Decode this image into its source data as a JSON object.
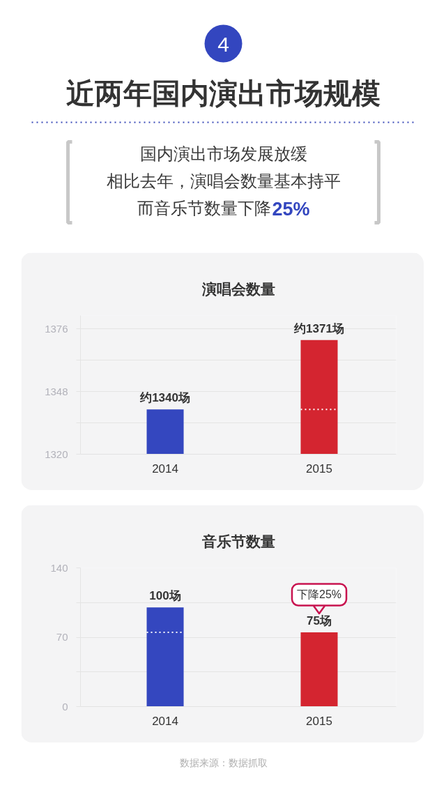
{
  "chart_data": [
    {
      "type": "other",
      "title": "近两年国内演出市场规模",
      "subtitle": "国内演出市场发展放缓相比去年，演唱会数量基本持平而音乐节数量下降25%",
      "annotations": [
        "4"
      ]
    },
    {
      "type": "bar",
      "title": "演唱会数量",
      "categories": [
        "2014",
        "2015"
      ],
      "values": [
        1340,
        1371
      ],
      "colors": [
        "#3447bf",
        "#d42530"
      ],
      "value_labels": [
        "约1340场",
        "约1371场"
      ],
      "ylim": [
        1320,
        1382
      ],
      "yticks": [
        1320,
        {
          "value": 1334,
          "label": null
        },
        1348,
        {
          "value": 1362,
          "label": null
        },
        1376
      ],
      "grid": "y",
      "ref_lines": [
        {
          "axis": "y",
          "value": 1340,
          "color": "#ffffff",
          "line_style": "dotted"
        }
      ]
    },
    {
      "type": "bar",
      "title": "音乐节数量",
      "categories": [
        "2014",
        "2015"
      ],
      "values": [
        100,
        75
      ],
      "colors": [
        "#3447bf",
        "#d42530"
      ],
      "value_labels": [
        "100场",
        "75场"
      ],
      "ylim": [
        0,
        140
      ],
      "yticks": [
        0,
        {
          "value": 35,
          "label": null
        },
        70,
        {
          "value": 105,
          "label": null
        },
        140
      ],
      "grid": "y",
      "ref_lines": [
        {
          "axis": "y",
          "value": 75,
          "color": "#ffffff",
          "line_style": "dotted"
        }
      ],
      "annotations": [
        {
          "text": "下降25%",
          "x": "2015",
          "y": 75
        },
        "数据来源：数据抓取"
      ]
    }
  ]
}
